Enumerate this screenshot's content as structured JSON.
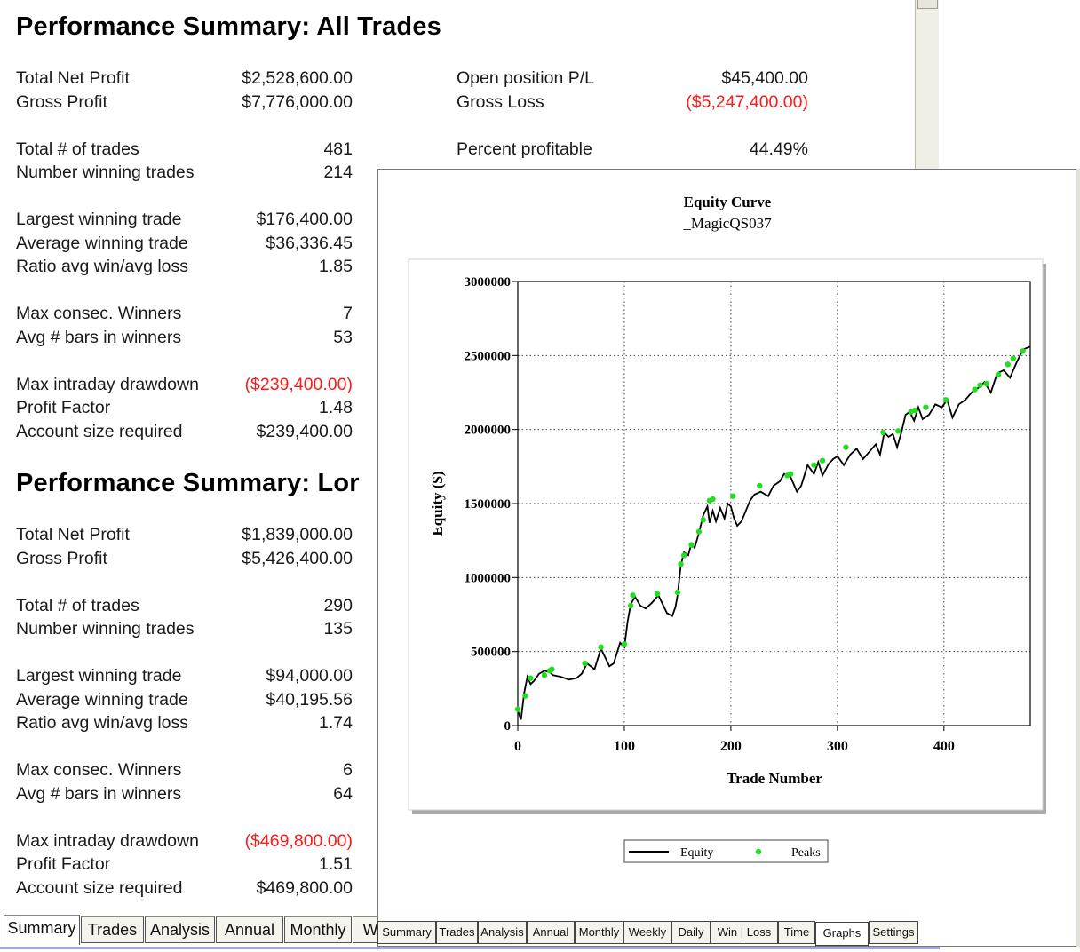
{
  "summary": {
    "all_trades": {
      "title": "Performance Summary:  All Trades",
      "left_groups": [
        [
          [
            "Total Net Profit",
            "$2,528,600.00",
            false
          ],
          [
            "Gross Profit",
            "$7,776,000.00",
            false
          ]
        ],
        [
          [
            "Total # of trades",
            "481",
            false
          ],
          [
            "Number winning trades",
            "214",
            false
          ]
        ],
        [
          [
            "Largest winning trade",
            "$176,400.00",
            false
          ],
          [
            "Average winning trade",
            "$36,336.45",
            false
          ],
          [
            "Ratio avg win/avg loss",
            "1.85",
            false
          ]
        ],
        [
          [
            "Max consec. Winners",
            "7",
            false
          ],
          [
            "Avg # bars in winners",
            "53",
            false
          ]
        ],
        [
          [
            "Max intraday drawdown",
            "($239,400.00)",
            true
          ],
          [
            "Profit Factor",
            "1.48",
            false
          ],
          [
            "Account size required",
            "$239,400.00",
            false
          ]
        ]
      ],
      "right_groups": [
        [
          [
            "Open position P/L",
            "$45,400.00",
            false
          ],
          [
            "Gross Loss",
            "($5,247,400.00)",
            true
          ]
        ],
        [
          [
            "Percent profitable",
            "44.49%",
            false
          ]
        ]
      ]
    },
    "long_trades": {
      "title": "Performance Summary:  Lor",
      "left_groups": [
        [
          [
            "Total Net Profit",
            "$1,839,000.00",
            false
          ],
          [
            "Gross Profit",
            "$5,426,400.00",
            false
          ]
        ],
        [
          [
            "Total # of trades",
            "290",
            false
          ],
          [
            "Number winning trades",
            "135",
            false
          ]
        ],
        [
          [
            "Largest winning trade",
            "$94,000.00",
            false
          ],
          [
            "Average winning trade",
            "$40,195.56",
            false
          ],
          [
            "Ratio avg win/avg loss",
            "1.74",
            false
          ]
        ],
        [
          [
            "Max consec. Winners",
            "6",
            false
          ],
          [
            "Avg # bars in winners",
            "64",
            false
          ]
        ],
        [
          [
            "Max intraday drawdown",
            "($469,800.00)",
            true
          ],
          [
            "Profit Factor",
            "1.51",
            false
          ],
          [
            "Account size required",
            "$469,800.00",
            false
          ]
        ]
      ]
    },
    "tabs": [
      "Summary",
      "Trades",
      "Analysis",
      "Annual",
      "Monthly",
      "W"
    ],
    "active_tab": "Summary"
  },
  "graph_window": {
    "tabs": [
      "Summary",
      "Trades",
      "Analysis",
      "Annual",
      "Monthly",
      "Weekly",
      "Daily",
      "Win | Loss",
      "Time",
      "Graphs",
      "Settings"
    ],
    "active_tab": "Graphs"
  },
  "chart_data": {
    "type": "line",
    "title": "Equity Curve",
    "subtitle": "_MagicQS037",
    "xlabel": "Trade Number",
    "ylabel": "Equity ($)",
    "xlim": [
      0,
      481
    ],
    "ylim": [
      0,
      3000000
    ],
    "x_ticks": [
      0,
      100,
      200,
      300,
      400
    ],
    "y_ticks": [
      0,
      500000,
      1000000,
      1500000,
      2000000,
      2500000,
      3000000
    ],
    "grid": true,
    "legend": [
      "Equity",
      "Peaks"
    ],
    "legend_placement": "bottom",
    "colors": {
      "equity": "#000000",
      "peaks": "#22dd22"
    },
    "series": [
      {
        "name": "Equity",
        "x": [
          0,
          3,
          6,
          9,
          12,
          15,
          20,
          25,
          30,
          33,
          40,
          48,
          55,
          60,
          65,
          72,
          78,
          82,
          86,
          90,
          96,
          100,
          103,
          106,
          110,
          115,
          120,
          126,
          132,
          136,
          140,
          145,
          148,
          150,
          153,
          156,
          160,
          163,
          166,
          170,
          174,
          178,
          180,
          183,
          186,
          190,
          194,
          197,
          200,
          203,
          206,
          210,
          214,
          218,
          222,
          228,
          235,
          240,
          246,
          250,
          256,
          262,
          266,
          272,
          278,
          282,
          286,
          292,
          296,
          300,
          306,
          312,
          318,
          324,
          330,
          336,
          340,
          344,
          348,
          352,
          356,
          360,
          364,
          368,
          372,
          376,
          380,
          386,
          392,
          398,
          403,
          408,
          414,
          420,
          426,
          432,
          438,
          444,
          450,
          456,
          462,
          468,
          474,
          481
        ],
        "y": [
          100000,
          40000,
          220000,
          330000,
          280000,
          300000,
          350000,
          370000,
          360000,
          340000,
          330000,
          310000,
          320000,
          350000,
          420000,
          380000,
          520000,
          460000,
          400000,
          420000,
          560000,
          530000,
          700000,
          820000,
          870000,
          810000,
          790000,
          830000,
          880000,
          820000,
          760000,
          740000,
          800000,
          880000,
          1080000,
          1170000,
          1150000,
          1230000,
          1200000,
          1300000,
          1420000,
          1480000,
          1370000,
          1450000,
          1380000,
          1470000,
          1400000,
          1500000,
          1480000,
          1400000,
          1350000,
          1380000,
          1450000,
          1520000,
          1560000,
          1580000,
          1550000,
          1620000,
          1650000,
          1700000,
          1680000,
          1580000,
          1620000,
          1760000,
          1700000,
          1780000,
          1690000,
          1770000,
          1800000,
          1820000,
          1760000,
          1830000,
          1870000,
          1800000,
          1850000,
          1900000,
          1830000,
          1980000,
          1950000,
          1970000,
          1880000,
          1980000,
          2100000,
          2120000,
          2060000,
          2150000,
          2070000,
          2100000,
          2170000,
          2150000,
          2200000,
          2080000,
          2170000,
          2200000,
          2250000,
          2280000,
          2320000,
          2250000,
          2380000,
          2400000,
          2350000,
          2450000,
          2540000,
          2560000
        ]
      },
      {
        "name": "Peaks",
        "x": [
          0,
          7,
          12,
          25,
          30,
          32,
          63,
          78,
          100,
          106,
          108,
          131,
          150,
          153,
          156,
          163,
          170,
          174,
          180,
          183,
          202,
          227,
          253,
          256,
          278,
          286,
          308,
          343,
          357,
          369,
          373,
          383,
          402,
          429,
          434,
          440,
          451,
          460,
          465,
          474
        ],
        "y": [
          110000,
          200000,
          320000,
          340000,
          370000,
          380000,
          420000,
          530000,
          550000,
          810000,
          880000,
          890000,
          900000,
          1090000,
          1150000,
          1220000,
          1310000,
          1390000,
          1520000,
          1530000,
          1550000,
          1620000,
          1690000,
          1700000,
          1760000,
          1790000,
          1880000,
          1980000,
          1990000,
          2120000,
          2130000,
          2150000,
          2200000,
          2270000,
          2300000,
          2310000,
          2370000,
          2440000,
          2480000,
          2530000
        ]
      }
    ]
  }
}
